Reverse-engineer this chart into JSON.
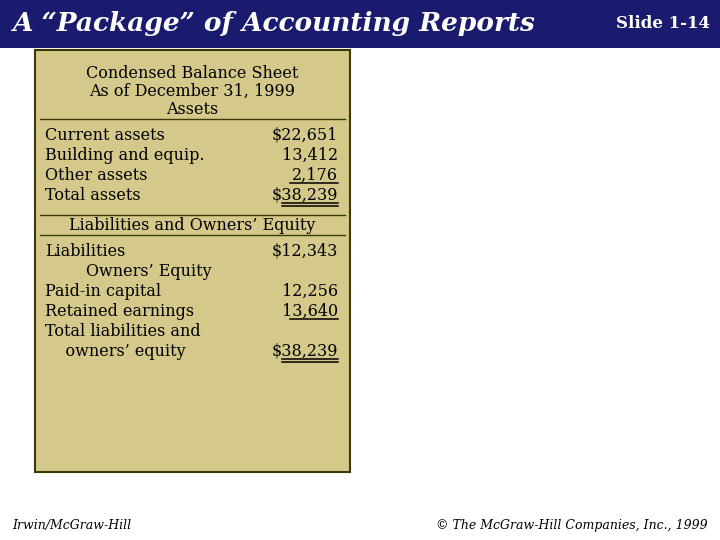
{
  "title": "A “Package” of Accounting Reports",
  "slide_num": "Slide 1-14",
  "header_bg": "#1a1a6e",
  "header_text_color": "#ffffff",
  "body_bg": "#ffffff",
  "box_bg": "#d4c98a",
  "box_border": "#3a3a00",
  "box_text_color": "#000000",
  "footer_left": "Irwin/McGraw-Hill",
  "footer_right": "© The McGraw-Hill Companies, Inc., 1999",
  "footer_color": "#000000",
  "box_title1": "Condensed Balance Sheet",
  "box_title2": "As of December 31, 1999",
  "box_section1": "Assets",
  "assets_rows": [
    [
      "Current assets",
      "$22,651"
    ],
    [
      "Building and equip.",
      "13,412"
    ],
    [
      "Other assets",
      "2,176"
    ],
    [
      "Total assets",
      "$38,239"
    ]
  ],
  "box_section2": "Liabilities and Owners’ Equity",
  "liabilities_rows": [
    [
      "Liabilities",
      "$12,343"
    ],
    [
      "        Owners’ Equity",
      ""
    ],
    [
      "Paid-in capital",
      "12,256"
    ],
    [
      "Retained earnings",
      "13,640"
    ],
    [
      "Total liabilities and",
      ""
    ],
    [
      "    owners’ equity",
      "$38,239"
    ]
  ]
}
